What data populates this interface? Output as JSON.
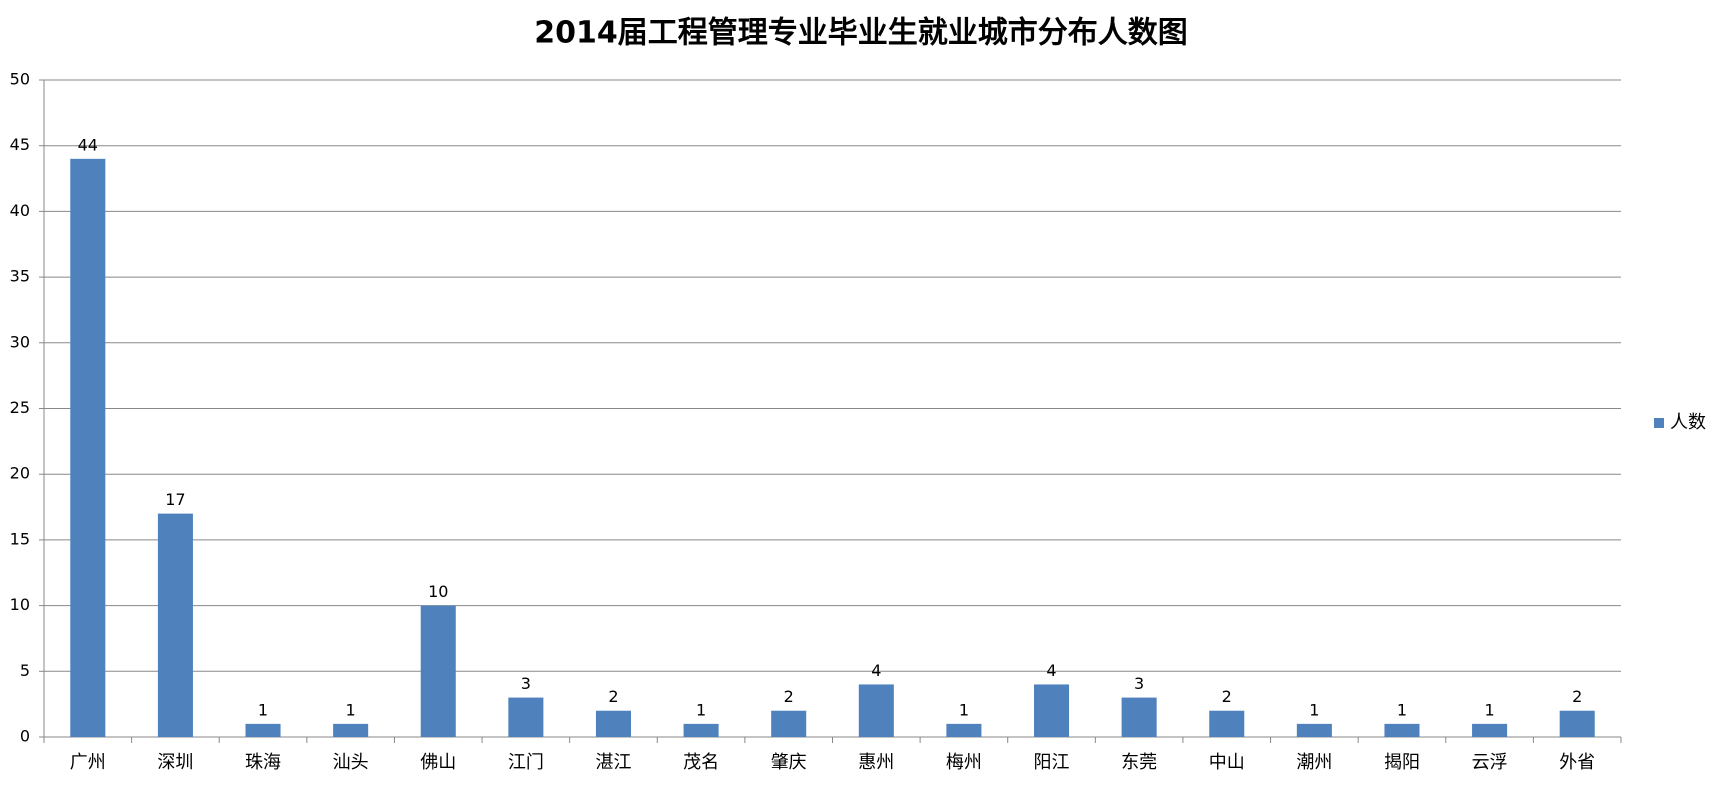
{
  "chart_data": {
    "type": "bar",
    "title": "2014届工程管理专业毕业生就业城市分布人数图",
    "categories": [
      "广州",
      "深圳",
      "珠海",
      "汕头",
      "佛山",
      "江门",
      "湛江",
      "茂名",
      "肇庆",
      "惠州",
      "梅州",
      "阳江",
      "东莞",
      "中山",
      "潮州",
      "揭阳",
      "云浮",
      "外省"
    ],
    "series": [
      {
        "name": "人数",
        "color": "#4f81bd",
        "values": [
          44,
          17,
          1,
          1,
          10,
          3,
          2,
          1,
          2,
          4,
          1,
          4,
          3,
          2,
          1,
          1,
          1,
          2
        ]
      }
    ],
    "ylim": [
      0,
      50
    ],
    "yticks": [
      0,
      5,
      10,
      15,
      20,
      25,
      30,
      35,
      40,
      45,
      50
    ],
    "grid": true,
    "legend": "right"
  }
}
